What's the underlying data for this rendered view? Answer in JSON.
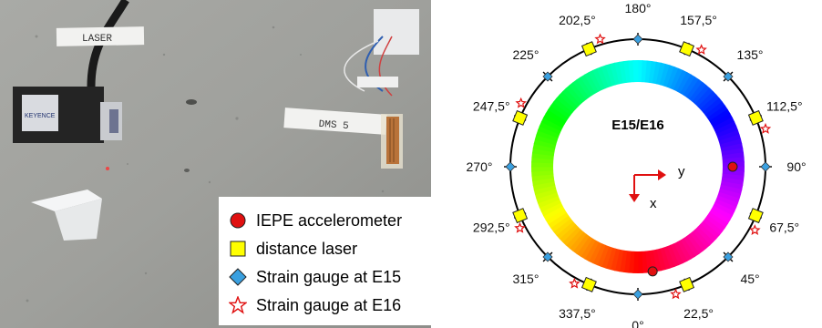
{
  "photo": {
    "laser_tag": "LASER",
    "dms_tag": "DMS 5",
    "device_brand": "KEYENCE"
  },
  "legend": {
    "items": [
      {
        "label": "IEPE accelerometer",
        "symbol": "red-circle"
      },
      {
        "label": "distance laser",
        "symbol": "yellow-square"
      },
      {
        "label": "Strain gauge at E15",
        "symbol": "blue-diamond"
      },
      {
        "label": "Strain gauge at E16",
        "symbol": "red-star"
      }
    ]
  },
  "diagram": {
    "center_label": "E15/E16",
    "axis_y": "y",
    "axis_x": "x",
    "angles": [
      "0°",
      "22,5°",
      "45°",
      "67,5°",
      "90°",
      "112,5°",
      "135°",
      "157,5°",
      "180°",
      "202,5°",
      "225°",
      "247,5°",
      "270°",
      "292,5°",
      "315°",
      "337,5°"
    ],
    "colors": {
      "accelerometer": "#e01010",
      "laser": "#ffff00",
      "strain_e15": "#3aa0e0",
      "strain_e16": "#e01010"
    }
  }
}
